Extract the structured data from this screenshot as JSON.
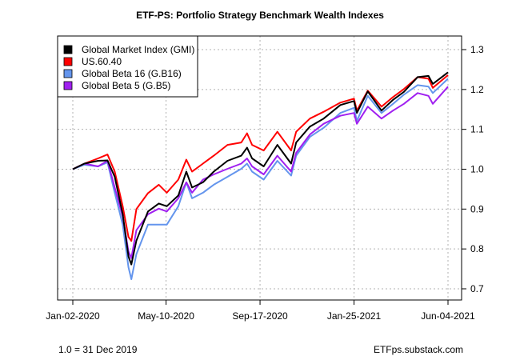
{
  "chart_data": {
    "type": "line",
    "title": "ETF-PS: Portfolio Strategy Benchmark Wealth Indexes",
    "xlabel": "",
    "ylabel": "",
    "xlim": [
      "2020-01-02",
      "2021-06-04"
    ],
    "ylim": [
      0.7,
      1.3
    ],
    "x_tick_labels": [
      "Jan-02-2020",
      "May-10-2020",
      "Sep-17-2020",
      "Jan-25-2021",
      "Jun-04-2021"
    ],
    "x_ticks": [
      "2020-01-02",
      "2020-05-10",
      "2020-09-17",
      "2021-01-25",
      "2021-06-04"
    ],
    "y_ticks": [
      0.7,
      0.8,
      0.9,
      1.0,
      1.1,
      1.2,
      1.3
    ],
    "y_tick_labels": [
      "0.7",
      "0.8",
      "0.9",
      "1.0",
      "1.1",
      "1.2",
      "1.3"
    ],
    "y_axis_side": "right",
    "grid": true,
    "legend_placement": "top-left",
    "x": [
      "2020-01-02",
      "2020-01-18",
      "2020-02-06",
      "2020-02-19",
      "2020-02-29",
      "2020-03-11",
      "2020-03-19",
      "2020-03-23",
      "2020-03-30",
      "2020-04-15",
      "2020-04-30",
      "2020-05-11",
      "2020-05-27",
      "2020-06-07",
      "2020-06-15",
      "2020-06-30",
      "2020-07-15",
      "2020-08-03",
      "2020-08-22",
      "2020-08-30",
      "2020-09-06",
      "2020-09-22",
      "2020-10-11",
      "2020-10-30",
      "2020-11-06",
      "2020-11-25",
      "2020-12-14",
      "2021-01-06",
      "2021-01-25",
      "2021-01-29",
      "2021-02-13",
      "2021-03-04",
      "2021-03-20",
      "2021-04-04",
      "2021-04-23",
      "2021-05-08",
      "2021-05-14",
      "2021-06-04"
    ],
    "series": [
      {
        "name": "Global Market Index (GMI)",
        "color": "#000000",
        "values": [
          1.0,
          1.014,
          1.021,
          1.022,
          0.981,
          0.887,
          0.781,
          0.761,
          0.821,
          0.894,
          0.914,
          0.907,
          0.934,
          0.994,
          0.954,
          0.967,
          0.994,
          1.021,
          1.034,
          1.054,
          1.027,
          1.007,
          1.061,
          1.014,
          1.067,
          1.107,
          1.127,
          1.161,
          1.171,
          1.141,
          1.195,
          1.147,
          1.174,
          1.194,
          1.231,
          1.234,
          1.214,
          1.243
        ]
      },
      {
        "name": "US.60.40",
        "color": "#ff0000",
        "values": [
          1.0,
          1.014,
          1.027,
          1.037,
          0.994,
          0.907,
          0.83,
          0.82,
          0.9,
          0.94,
          0.961,
          0.941,
          0.974,
          1.024,
          0.994,
          1.014,
          1.034,
          1.061,
          1.067,
          1.09,
          1.061,
          1.047,
          1.094,
          1.047,
          1.094,
          1.127,
          1.144,
          1.167,
          1.177,
          1.147,
          1.197,
          1.157,
          1.181,
          1.201,
          1.231,
          1.227,
          1.204,
          1.236
        ]
      },
      {
        "name": "Global Beta 16 (G.B16)",
        "color": "#6495ed",
        "values": [
          1.0,
          1.011,
          1.007,
          1.017,
          0.941,
          0.861,
          0.754,
          0.724,
          0.787,
          0.861,
          0.861,
          0.861,
          0.907,
          0.967,
          0.927,
          0.941,
          0.961,
          0.981,
          1.001,
          1.014,
          0.994,
          0.974,
          1.021,
          0.984,
          1.034,
          1.081,
          1.104,
          1.141,
          1.154,
          1.121,
          1.184,
          1.141,
          1.164,
          1.187,
          1.211,
          1.207,
          1.191,
          1.227
        ]
      },
      {
        "name": "Global Beta 5 (G.B5)",
        "color": "#a020f0",
        "values": [
          1.0,
          1.014,
          1.007,
          1.021,
          0.954,
          0.881,
          0.794,
          0.777,
          0.847,
          0.887,
          0.901,
          0.894,
          0.927,
          0.967,
          0.941,
          0.974,
          0.987,
          1.001,
          1.014,
          1.027,
          1.007,
          0.987,
          1.034,
          0.994,
          1.041,
          1.087,
          1.114,
          1.134,
          1.141,
          1.114,
          1.157,
          1.127,
          1.147,
          1.164,
          1.191,
          1.184,
          1.164,
          1.207
        ]
      }
    ]
  },
  "footer": {
    "left_note": "1.0 = 31 Dec 2019",
    "right_note": "ETFps.substack.com"
  }
}
